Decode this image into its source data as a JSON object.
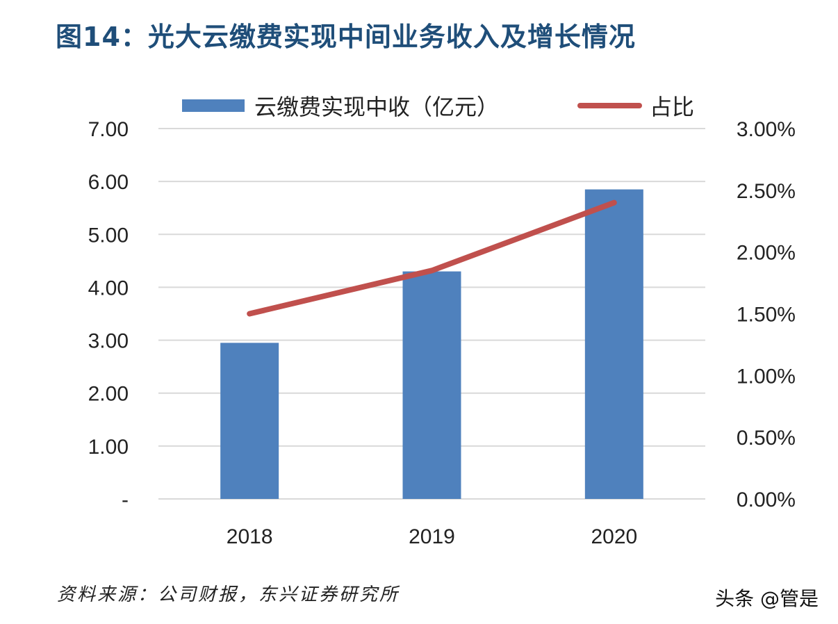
{
  "title": "图14：光大云缴费实现中间业务收入及增长情况",
  "source": "资料来源：公司财报，东兴证券研究所",
  "watermark": "头条 @管是",
  "chart_data": {
    "type": "bar",
    "categories": [
      "2018",
      "2019",
      "2020"
    ],
    "series": [
      {
        "name": "云缴费实现中收（亿元）",
        "kind": "bar",
        "axis": "left",
        "color": "#4f81bd",
        "values": [
          2.95,
          4.3,
          5.85
        ]
      },
      {
        "name": "占比",
        "kind": "line",
        "axis": "right",
        "color": "#c0504d",
        "values": [
          1.5,
          1.85,
          2.4
        ]
      }
    ],
    "y_left": {
      "ylim": [
        0,
        7
      ],
      "ticks": [
        0,
        1,
        2,
        3,
        4,
        5,
        6,
        7
      ],
      "tick_labels": [
        "-",
        "1.00",
        "2.00",
        "3.00",
        "4.00",
        "5.00",
        "6.00",
        "7.00"
      ]
    },
    "y_right": {
      "ylim": [
        0,
        3
      ],
      "ticks": [
        0,
        0.5,
        1,
        1.5,
        2,
        2.5,
        3
      ],
      "tick_labels": [
        "0.00%",
        "0.50%",
        "1.00%",
        "1.50%",
        "2.00%",
        "2.50%",
        "3.00%"
      ]
    },
    "grid": true,
    "legend": "top"
  }
}
